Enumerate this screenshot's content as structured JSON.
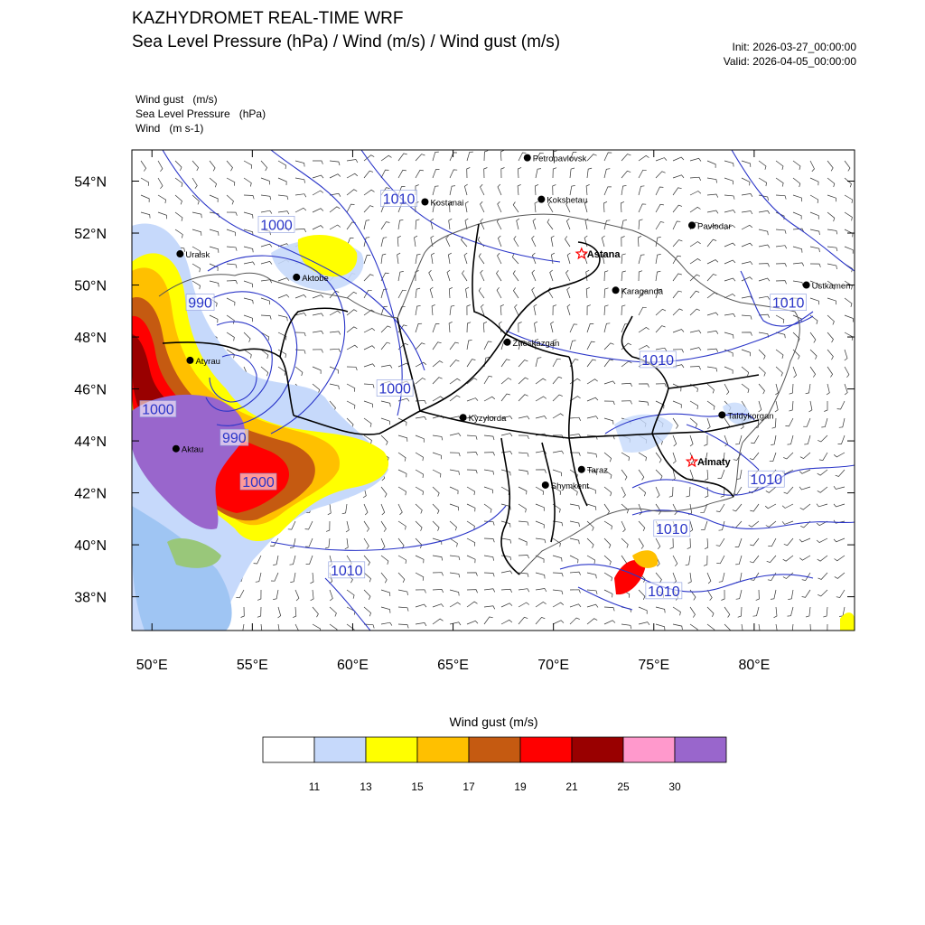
{
  "header": {
    "title": "KAZHYDROMET REAL-TIME WRF",
    "subtitle": "Sea Level Pressure  (hPa) / Wind  (m/s) / Wind gust  (m/s)",
    "init": "Init: 2026-03-27_00:00:00",
    "valid": "Valid: 2026-04-05_00:00:00"
  },
  "legend_lines": [
    "Wind gust   (m/s)",
    "Sea Level Pressure   (hPa)",
    "Wind   (m s-1)"
  ],
  "map": {
    "lon_range": [
      49,
      85
    ],
    "lat_range": [
      36.7,
      55.2
    ],
    "lon_ticks": [
      {
        "lon": 50,
        "label": "50°E"
      },
      {
        "lon": 55,
        "label": "55°E"
      },
      {
        "lon": 60,
        "label": "60°E"
      },
      {
        "lon": 65,
        "label": "65°E"
      },
      {
        "lon": 70,
        "label": "70°E"
      },
      {
        "lon": 75,
        "label": "75°E"
      },
      {
        "lon": 80,
        "label": "80°E"
      }
    ],
    "lat_ticks": [
      {
        "lat": 54,
        "label": "54°N"
      },
      {
        "lat": 52,
        "label": "52°N"
      },
      {
        "lat": 50,
        "label": "50°N"
      },
      {
        "lat": 48,
        "label": "48°N"
      },
      {
        "lat": 46,
        "label": "46°N"
      },
      {
        "lat": 44,
        "label": "44°N"
      },
      {
        "lat": 42,
        "label": "42°N"
      },
      {
        "lat": 40,
        "label": "40°N"
      },
      {
        "lat": 38,
        "label": "38°N"
      }
    ],
    "cities": [
      {
        "name": "Petropavlovsk",
        "lon": 68.7,
        "lat": 54.9,
        "marker": "dot"
      },
      {
        "name": "Kostanai",
        "lon": 63.6,
        "lat": 53.2,
        "marker": "dot"
      },
      {
        "name": "Kokshetau",
        "lon": 69.4,
        "lat": 53.3,
        "marker": "dot"
      },
      {
        "name": "Pavlodar",
        "lon": 76.9,
        "lat": 52.3,
        "marker": "dot"
      },
      {
        "name": "Astana",
        "lon": 71.4,
        "lat": 51.2,
        "marker": "star",
        "bold": true
      },
      {
        "name": "Uralsk",
        "lon": 51.4,
        "lat": 51.2,
        "marker": "dot"
      },
      {
        "name": "Aktobe",
        "lon": 57.2,
        "lat": 50.3,
        "marker": "dot"
      },
      {
        "name": "Ust-Kamenogorsk",
        "label": "Ustkamen",
        "lon": 82.6,
        "lat": 50.0,
        "marker": "dot"
      },
      {
        "name": "Karaganda",
        "lon": 73.1,
        "lat": 49.8,
        "marker": "dot"
      },
      {
        "name": "Atyrau",
        "lon": 51.9,
        "lat": 47.1,
        "marker": "dot"
      },
      {
        "name": "Zheskazgan",
        "lon": 67.7,
        "lat": 47.8,
        "marker": "dot"
      },
      {
        "name": "Taldykorgan",
        "lon": 78.4,
        "lat": 45.0,
        "marker": "dot"
      },
      {
        "name": "Kyzylorda",
        "lon": 65.5,
        "lat": 44.9,
        "marker": "dot"
      },
      {
        "name": "Aktau",
        "lon": 51.2,
        "lat": 43.7,
        "marker": "dot"
      },
      {
        "name": "Almaty",
        "lon": 76.9,
        "lat": 43.2,
        "marker": "star",
        "bold": true
      },
      {
        "name": "Taraz",
        "lon": 71.4,
        "lat": 42.9,
        "marker": "dot"
      },
      {
        "name": "Shymkent",
        "lon": 69.6,
        "lat": 42.3,
        "marker": "dot"
      }
    ],
    "isobar_labels": [
      {
        "value": "1010",
        "lon": 62.3,
        "lat": 53.3
      },
      {
        "value": "1000",
        "lon": 56.2,
        "lat": 52.3
      },
      {
        "value": "990",
        "lon": 52.4,
        "lat": 49.3
      },
      {
        "value": "1010",
        "lon": 81.7,
        "lat": 49.3
      },
      {
        "value": "1010",
        "lon": 75.2,
        "lat": 47.1
      },
      {
        "value": "1000",
        "lon": 62.1,
        "lat": 46.0
      },
      {
        "value": "1000",
        "lon": 50.3,
        "lat": 45.2
      },
      {
        "value": "990",
        "lon": 54.1,
        "lat": 44.1
      },
      {
        "value": "1000",
        "lon": 55.3,
        "lat": 42.4
      },
      {
        "value": "1010",
        "lon": 80.6,
        "lat": 42.5
      },
      {
        "value": "1010",
        "lon": 75.9,
        "lat": 40.6
      },
      {
        "value": "1010",
        "lon": 59.7,
        "lat": 39.0
      },
      {
        "value": "1010",
        "lon": 75.5,
        "lat": 38.2
      }
    ]
  },
  "colorbar": {
    "title": "Wind gust (m/s)",
    "colors": [
      "#ffffff",
      "#c6d9fb",
      "#ffff00",
      "#ffc000",
      "#c55a11",
      "#ff0000",
      "#990000",
      "#ff99cc",
      "#9966cc"
    ],
    "labels": [
      "11",
      "13",
      "15",
      "17",
      "19",
      "21",
      "25",
      "30"
    ]
  }
}
